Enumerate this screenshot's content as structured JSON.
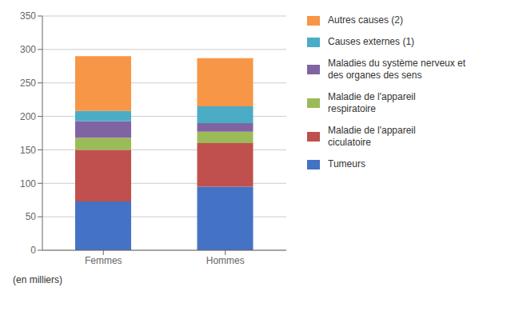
{
  "chart_data": {
    "type": "bar",
    "stacked": true,
    "categories": [
      "Femmes",
      "Hommes"
    ],
    "series": [
      {
        "name": "Tumeurs",
        "color": "#4472C4",
        "values": [
          73,
          95
        ]
      },
      {
        "name": "Maladie de l'appareil\nciculatoire",
        "color": "#C0504D",
        "values": [
          77,
          65
        ]
      },
      {
        "name": "Maladie de l'appareil\nrespiratoire",
        "color": "#9BBB59",
        "values": [
          18,
          17
        ]
      },
      {
        "name": "Maladies du système nerveux et\ndes organes des sens",
        "color": "#8064A2",
        "values": [
          25,
          13
        ]
      },
      {
        "name": "Causes externes (1)",
        "color": "#4BACC6",
        "values": [
          15,
          25
        ]
      },
      {
        "name": "Autres causes (2)",
        "color": "#F79646",
        "values": [
          82,
          72
        ]
      }
    ],
    "ylim": [
      0,
      350
    ],
    "yticks": [
      0,
      50,
      100,
      150,
      200,
      250,
      300,
      350
    ],
    "grid": true,
    "legend": "right",
    "annotations": [
      "(en milliers)"
    ]
  }
}
